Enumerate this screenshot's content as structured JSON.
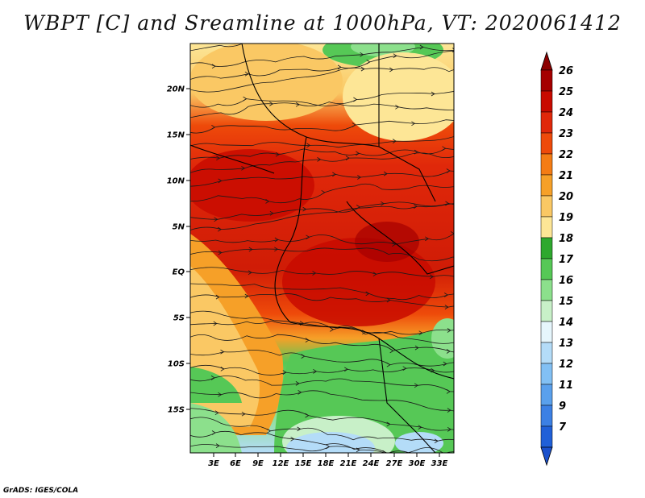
{
  "title": "WBPT [C] and Sreamline at 1000hPa, VT: 2020061412",
  "credit": "GrADS: IGES/COLA",
  "map": {
    "lat_ticks": [
      "20N",
      "15N",
      "10N",
      "5N",
      "EQ",
      "5S",
      "10S",
      "15S"
    ],
    "lon_ticks": [
      "3E",
      "6E",
      "9E",
      "12E",
      "15E",
      "18E",
      "21E",
      "24E",
      "27E",
      "30E",
      "33E"
    ]
  },
  "colorbar": {
    "labels": [
      "26",
      "25",
      "24",
      "23",
      "22",
      "21",
      "20",
      "19",
      "18",
      "17",
      "16",
      "15",
      "14",
      "13",
      "12",
      "11",
      "9",
      "7"
    ],
    "colors": [
      "#a50000",
      "#c80a00",
      "#e0280a",
      "#ee4a0a",
      "#f47c14",
      "#f6a028",
      "#fac864",
      "#fde696",
      "#2ea82e",
      "#56c856",
      "#8ce08c",
      "#c8f0c8",
      "#e6f6fc",
      "#b4dcf8",
      "#82c0f4",
      "#5aa0ec",
      "#3c80e4",
      "#2060d8"
    ],
    "top_arrow_color": "#8c0000",
    "bottom_arrow_color": "#1a50cc"
  }
}
